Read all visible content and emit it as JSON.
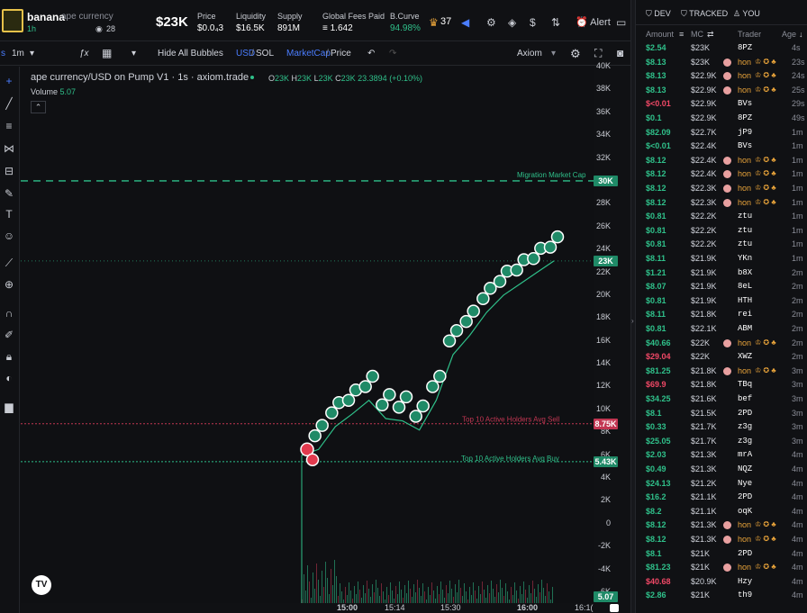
{
  "token": {
    "ticker": "banana",
    "name": "ape currency",
    "age": "1h",
    "holders": "28",
    "price_cap": "$23K"
  },
  "stats": [
    {
      "label": "Price",
      "value": "$0.0₄3"
    },
    {
      "label": "Liquidity",
      "value": "$16.5K"
    },
    {
      "label": "Supply",
      "value": "891M"
    },
    {
      "label": "Global Fees Paid",
      "value": "≡ 1.642"
    },
    {
      "label": "B.Curve",
      "value": "94.98%"
    }
  ],
  "topbar": {
    "crown_count": "37",
    "alert_label": "Alert"
  },
  "toolbar": {
    "interval": "1m",
    "hide_bubbles": "Hide All Bubbles",
    "usd": "USD",
    "sol": "SOL",
    "mcap": "MarketCap",
    "price": "Price",
    "font": "Axiom",
    "prefix": "s"
  },
  "chart": {
    "title": "ape currency/USD on Pump V1 · 1s · axiom.trade",
    "ohlc": {
      "o": "23K",
      "h": "23K",
      "l": "23K",
      "c": "23K",
      "change": "23.3894 (+0.10%)"
    },
    "volume_label": "Volume",
    "volume_value": "5.07",
    "migration_label": "Migration Market Cap",
    "avg_sell_label": "Top 10 Active Holders Avg Sell",
    "avg_buy_label": "Top 10 Active Holders Avg Buy",
    "y_ticks": [
      "40K",
      "38K",
      "36K",
      "34K",
      "32K",
      "30K",
      "28K",
      "26K",
      "24K",
      "22K",
      "20K",
      "18K",
      "16K",
      "14K",
      "12K",
      "10K",
      "8K",
      "6K",
      "4K",
      "2K",
      "0",
      "-2K",
      "-4K",
      "-6K"
    ],
    "y_badges": {
      "migration": "30K",
      "current": "23K",
      "sell": "8.75K",
      "buy": "5.43K",
      "volume": "5.07"
    },
    "x_ticks": [
      "15:00",
      "15:14",
      "15:30",
      "16:00",
      "16:1("
    ],
    "tv": "TV"
  },
  "chart_data": {
    "type": "line",
    "ylabel": "",
    "ylim": [
      -6000,
      40000
    ],
    "x": [
      "14:56",
      "15:00",
      "15:05",
      "15:10",
      "15:14",
      "15:18",
      "15:22",
      "15:26",
      "15:30",
      "15:35",
      "15:40",
      "15:45",
      "15:50",
      "15:55",
      "16:00",
      "16:04"
    ],
    "series": [
      {
        "values": [
          6000,
          6500,
          8500,
          9600,
          10800,
          9200,
          9000,
          8200,
          10800,
          14800,
          16500,
          18500,
          20000,
          21000,
          22000,
          23000
        ]
      }
    ],
    "lines": {
      "migration_cap": 30000,
      "avg_sell": 8750,
      "avg_buy": 5430
    }
  },
  "panel": {
    "tabs": [
      "DEV",
      "TRACKED",
      "YOU"
    ],
    "headers": {
      "amount": "Amount",
      "mc": "MC",
      "trader": "Trader",
      "age": "Age"
    },
    "trades": [
      {
        "amount": "$2.54",
        "side": "buy",
        "mc": "$23K",
        "trader": "8PZ",
        "age": "4s"
      },
      {
        "amount": "$8.13",
        "side": "buy",
        "mc": "$23K",
        "trader": "hon",
        "age": "23s"
      },
      {
        "amount": "$8.13",
        "side": "buy",
        "mc": "$22.9K",
        "trader": "hon",
        "age": "24s"
      },
      {
        "amount": "$8.13",
        "side": "buy",
        "mc": "$22.9K",
        "trader": "hon",
        "age": "25s"
      },
      {
        "amount": "$<0.01",
        "side": "sell",
        "mc": "$22.9K",
        "trader": "BVs",
        "age": "29s"
      },
      {
        "amount": "$0.1",
        "side": "buy",
        "mc": "$22.9K",
        "trader": "8PZ",
        "age": "49s"
      },
      {
        "amount": "$82.09",
        "side": "buy",
        "mc": "$22.7K",
        "trader": "jP9",
        "age": "1m"
      },
      {
        "amount": "$<0.01",
        "side": "buy",
        "mc": "$22.4K",
        "trader": "BVs",
        "age": "1m"
      },
      {
        "amount": "$8.12",
        "side": "buy",
        "mc": "$22.4K",
        "trader": "hon",
        "age": "1m"
      },
      {
        "amount": "$8.12",
        "side": "buy",
        "mc": "$22.4K",
        "trader": "hon",
        "age": "1m"
      },
      {
        "amount": "$8.12",
        "side": "buy",
        "mc": "$22.3K",
        "trader": "hon",
        "age": "1m"
      },
      {
        "amount": "$8.12",
        "side": "buy",
        "mc": "$22.3K",
        "trader": "hon",
        "age": "1m"
      },
      {
        "amount": "$0.81",
        "side": "buy",
        "mc": "$22.2K",
        "trader": "ztu",
        "age": "1m"
      },
      {
        "amount": "$0.81",
        "side": "buy",
        "mc": "$22.2K",
        "trader": "ztu",
        "age": "1m"
      },
      {
        "amount": "$0.81",
        "side": "buy",
        "mc": "$22.2K",
        "trader": "ztu",
        "age": "1m"
      },
      {
        "amount": "$8.11",
        "side": "buy",
        "mc": "$21.9K",
        "trader": "YKn",
        "age": "1m"
      },
      {
        "amount": "$1.21",
        "side": "buy",
        "mc": "$21.9K",
        "trader": "b8X",
        "age": "2m"
      },
      {
        "amount": "$8.07",
        "side": "buy",
        "mc": "$21.9K",
        "trader": "8eL",
        "age": "2m"
      },
      {
        "amount": "$0.81",
        "side": "buy",
        "mc": "$21.9K",
        "trader": "HTH",
        "age": "2m"
      },
      {
        "amount": "$8.11",
        "side": "buy",
        "mc": "$21.8K",
        "trader": "rei",
        "age": "2m"
      },
      {
        "amount": "$0.81",
        "side": "buy",
        "mc": "$22.1K",
        "trader": "ABM",
        "age": "2m"
      },
      {
        "amount": "$40.66",
        "side": "buy",
        "mc": "$22K",
        "trader": "hon",
        "age": "2m"
      },
      {
        "amount": "$29.04",
        "side": "sell",
        "mc": "$22K",
        "trader": "XWZ",
        "age": "2m"
      },
      {
        "amount": "$81.25",
        "side": "buy",
        "mc": "$21.8K",
        "trader": "hon",
        "age": "3m"
      },
      {
        "amount": "$69.9",
        "side": "sell",
        "mc": "$21.8K",
        "trader": "TBq",
        "age": "3m"
      },
      {
        "amount": "$34.25",
        "side": "buy",
        "mc": "$21.6K",
        "trader": "bef",
        "age": "3m"
      },
      {
        "amount": "$8.1",
        "side": "buy",
        "mc": "$21.5K",
        "trader": "2PD",
        "age": "3m"
      },
      {
        "amount": "$0.33",
        "side": "buy",
        "mc": "$21.7K",
        "trader": "z3g",
        "age": "3m"
      },
      {
        "amount": "$25.05",
        "side": "buy",
        "mc": "$21.7K",
        "trader": "z3g",
        "age": "3m"
      },
      {
        "amount": "$2.03",
        "side": "buy",
        "mc": "$21.3K",
        "trader": "mrA",
        "age": "4m"
      },
      {
        "amount": "$0.49",
        "side": "buy",
        "mc": "$21.3K",
        "trader": "NQZ",
        "age": "4m"
      },
      {
        "amount": "$24.13",
        "side": "buy",
        "mc": "$21.2K",
        "trader": "Nye",
        "age": "4m"
      },
      {
        "amount": "$16.2",
        "side": "buy",
        "mc": "$21.1K",
        "trader": "2PD",
        "age": "4m"
      },
      {
        "amount": "$8.2",
        "side": "buy",
        "mc": "$21.1K",
        "trader": "oqK",
        "age": "4m"
      },
      {
        "amount": "$8.12",
        "side": "buy",
        "mc": "$21.3K",
        "trader": "hon",
        "age": "4m"
      },
      {
        "amount": "$8.12",
        "side": "buy",
        "mc": "$21.3K",
        "trader": "hon",
        "age": "4m"
      },
      {
        "amount": "$8.1",
        "side": "buy",
        "mc": "$21K",
        "trader": "2PD",
        "age": "4m"
      },
      {
        "amount": "$81.23",
        "side": "buy",
        "mc": "$21K",
        "trader": "hon",
        "age": "4m"
      },
      {
        "amount": "$40.68",
        "side": "sell",
        "mc": "$20.9K",
        "trader": "Hzy",
        "age": "4m"
      },
      {
        "amount": "$2.86",
        "side": "buy",
        "mc": "$21K",
        "trader": "th9",
        "age": "4m"
      }
    ]
  },
  "colors": {
    "buy": "#2fc08a",
    "sell": "#f04866",
    "accent": "#4a7dff"
  }
}
